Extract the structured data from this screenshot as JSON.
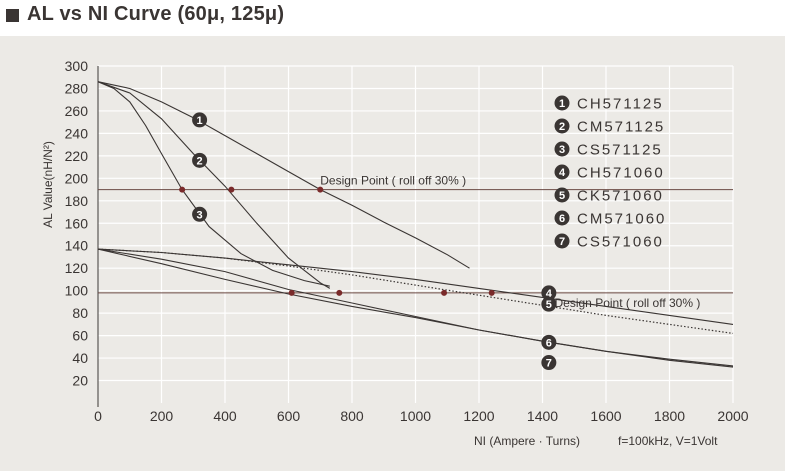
{
  "header": {
    "title": "AL vs NI Curve (60μ, 125μ)"
  },
  "colors": {
    "ink": "#3a3533",
    "marker": "#7a2a2a",
    "panel": "#eceae6"
  },
  "chart_data": {
    "type": "line",
    "title": "AL vs NI Curve (60μ, 125μ)",
    "xlabel": "NI (Ampere · Turns)",
    "ylabel": "AL Value(nH/N²)",
    "conditions": "f=100kHz, V=1Volt",
    "xlim": [
      0,
      2000
    ],
    "ylim": [
      0,
      300
    ],
    "xticks": [
      0,
      200,
      400,
      600,
      800,
      1000,
      1200,
      1400,
      1600,
      1800,
      2000
    ],
    "yticks": [
      20,
      40,
      60,
      80,
      100,
      120,
      140,
      160,
      180,
      200,
      220,
      240,
      260,
      280,
      300
    ],
    "grid": true,
    "legend_position": "top-right",
    "series": [
      {
        "name": "CH571125",
        "badge": "1",
        "style": "solid",
        "x": [
          0,
          100,
          200,
          300,
          400,
          500,
          600,
          700,
          800,
          900,
          1000,
          1100,
          1170
        ],
        "y": [
          286,
          280,
          268,
          254,
          238,
          222,
          206,
          190,
          176,
          161,
          147,
          132,
          120
        ]
      },
      {
        "name": "CM571125",
        "badge": "2",
        "style": "solid",
        "x": [
          0,
          100,
          200,
          300,
          400,
          500,
          600,
          700,
          730
        ],
        "y": [
          286,
          276,
          253,
          222,
          193,
          160,
          129,
          107,
          102
        ]
      },
      {
        "name": "CS571125",
        "badge": "3",
        "style": "solid",
        "x": [
          0,
          50,
          100,
          150,
          200,
          265,
          350,
          450,
          550,
          650,
          730
        ],
        "y": [
          286,
          280,
          268,
          247,
          222,
          190,
          157,
          133,
          118,
          109,
          104
        ]
      },
      {
        "name": "CH571060",
        "badge": "4",
        "style": "solid",
        "x": [
          0,
          200,
          400,
          600,
          800,
          1000,
          1200,
          1400,
          1600,
          1800,
          2000
        ],
        "y": [
          137,
          134,
          129,
          123,
          117,
          110,
          102,
          94,
          86,
          78,
          70
        ]
      },
      {
        "name": "CK571060",
        "badge": "5",
        "style": "dotted",
        "x": [
          0,
          200,
          400,
          600,
          800,
          1000,
          1200,
          1400,
          1600,
          1800,
          2000
        ],
        "y": [
          137,
          134,
          129,
          122,
          114,
          105,
          96,
          87,
          78,
          70,
          62
        ]
      },
      {
        "name": "CM571060",
        "badge": "6",
        "style": "solid",
        "x": [
          0,
          200,
          400,
          600,
          800,
          1000,
          1200,
          1400,
          1600,
          1800,
          2000
        ],
        "y": [
          137,
          124,
          110,
          97,
          86,
          76,
          65,
          55,
          46,
          38,
          32
        ]
      },
      {
        "name": "CS571060",
        "badge": "7",
        "style": "solid",
        "x": [
          0,
          200,
          400,
          600,
          800,
          1000,
          1200,
          1400,
          1600,
          1800,
          2000
        ],
        "y": [
          137,
          128,
          117,
          101,
          89,
          77,
          65,
          55,
          46,
          39,
          33
        ]
      }
    ],
    "reference_lines": [
      {
        "y": 190,
        "label": "Design Point ( roll off 30% )"
      },
      {
        "y": 98,
        "label": "Design Point ( roll off 30% )"
      }
    ],
    "design_points": [
      {
        "x": 265,
        "y": 190
      },
      {
        "x": 420,
        "y": 190
      },
      {
        "x": 700,
        "y": 190
      },
      {
        "x": 610,
        "y": 98
      },
      {
        "x": 760,
        "y": 98
      },
      {
        "x": 1090,
        "y": 98
      },
      {
        "x": 1240,
        "y": 98
      }
    ],
    "badge_positions": [
      {
        "badge": "1",
        "x": 320,
        "y": 252
      },
      {
        "badge": "2",
        "x": 320,
        "y": 216
      },
      {
        "badge": "3",
        "x": 320,
        "y": 168
      },
      {
        "badge": "4",
        "x": 1420,
        "y": 98
      },
      {
        "badge": "5",
        "x": 1420,
        "y": 88
      },
      {
        "badge": "6",
        "x": 1420,
        "y": 54
      },
      {
        "badge": "7",
        "x": 1420,
        "y": 36
      }
    ]
  }
}
